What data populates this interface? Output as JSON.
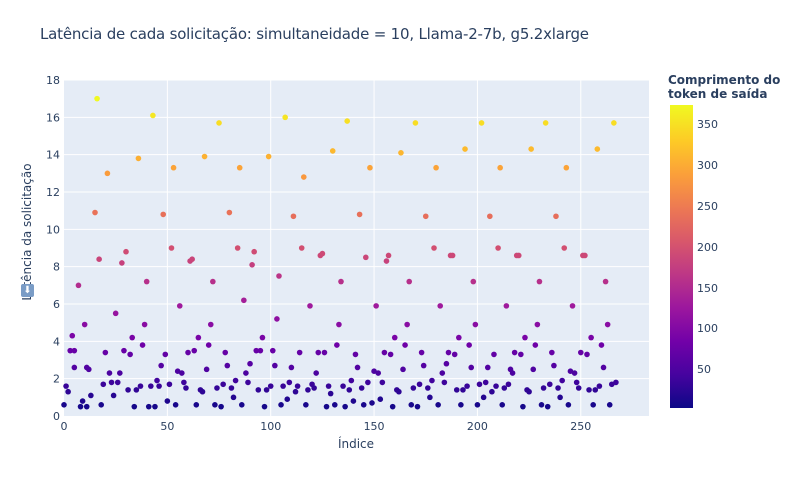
{
  "title": "Latência de cada solicitação: simultaneidade = 10, Llama-2-7b, g5.2xlarge",
  "colorbar": {
    "title_line1": "Comprimento do",
    "title_line2": "token de saída",
    "ticks": [
      "350",
      "300",
      "250",
      "200",
      "150",
      "100",
      "50"
    ],
    "tick_values": [
      350,
      300,
      250,
      200,
      150,
      100,
      50
    ],
    "range": [
      5,
      375
    ],
    "colorscale": [
      "#0d0887",
      "#46039f",
      "#7201a8",
      "#9c179e",
      "#bd3786",
      "#d8576b",
      "#ed7953",
      "#fb9f3a",
      "#fdca26",
      "#f0f921"
    ]
  },
  "axes": {
    "x_title": "Índice",
    "y_title": "Latência da solicitação",
    "y_icon": "download-arrow-icon",
    "x_ticks": [
      "0",
      "50",
      "100",
      "150",
      "200",
      "250"
    ],
    "y_ticks": [
      "0",
      "2",
      "4",
      "6",
      "8",
      "10",
      "12",
      "14",
      "16",
      "18"
    ]
  },
  "chart_data": {
    "type": "scatter",
    "title": "Latência de cada solicitação: simultaneidade = 10, Llama-2-7b, g5.2xlarge",
    "xlabel": "Índice",
    "ylabel": "Latência da solicitação",
    "xlim": [
      0,
      283
    ],
    "ylim": [
      0,
      18
    ],
    "grid": true,
    "color_label": "Comprimento do token de saída",
    "color_range": [
      5,
      375
    ],
    "points": [
      [
        0,
        0.6
      ],
      [
        1,
        1.6
      ],
      [
        2,
        1.3
      ],
      [
        3,
        3.5
      ],
      [
        4,
        4.3
      ],
      [
        5,
        2.6
      ],
      [
        5,
        3.5
      ],
      [
        7,
        7.0
      ],
      [
        8,
        0.5
      ],
      [
        9,
        0.8
      ],
      [
        10,
        4.9
      ],
      [
        11,
        2.6
      ],
      [
        11,
        0.5
      ],
      [
        12,
        2.5
      ],
      [
        13,
        1.1
      ],
      [
        15,
        10.9
      ],
      [
        16,
        17.0
      ],
      [
        17,
        8.4
      ],
      [
        18,
        0.6
      ],
      [
        19,
        1.7
      ],
      [
        20,
        3.4
      ],
      [
        21,
        13.0
      ],
      [
        22,
        2.3
      ],
      [
        23,
        1.8
      ],
      [
        24,
        1.1
      ],
      [
        25,
        5.5
      ],
      [
        26,
        1.8
      ],
      [
        27,
        2.3
      ],
      [
        28,
        8.2
      ],
      [
        29,
        3.5
      ],
      [
        30,
        8.8
      ],
      [
        31,
        1.4
      ],
      [
        32,
        3.3
      ],
      [
        33,
        4.2
      ],
      [
        34,
        0.5
      ],
      [
        35,
        1.4
      ],
      [
        36,
        13.8
      ],
      [
        37,
        1.6
      ],
      [
        38,
        3.8
      ],
      [
        39,
        4.9
      ],
      [
        40,
        7.2
      ],
      [
        41,
        0.5
      ],
      [
        42,
        1.6
      ],
      [
        43,
        16.1
      ],
      [
        44,
        0.5
      ],
      [
        45,
        1.9
      ],
      [
        46,
        1.6
      ],
      [
        47,
        2.7
      ],
      [
        48,
        10.8
      ],
      [
        49,
        3.3
      ],
      [
        50,
        0.8
      ],
      [
        51,
        1.7
      ],
      [
        52,
        9.0
      ],
      [
        53,
        13.3
      ],
      [
        54,
        0.6
      ],
      [
        55,
        2.4
      ],
      [
        56,
        5.9
      ],
      [
        57,
        2.3
      ],
      [
        58,
        1.8
      ],
      [
        59,
        1.5
      ],
      [
        60,
        3.4
      ],
      [
        61,
        8.3
      ],
      [
        62,
        8.4
      ],
      [
        63,
        3.5
      ],
      [
        64,
        0.6
      ],
      [
        65,
        4.2
      ],
      [
        66,
        1.4
      ],
      [
        67,
        1.3
      ],
      [
        68,
        13.9
      ],
      [
        69,
        2.5
      ],
      [
        70,
        3.8
      ],
      [
        71,
        4.9
      ],
      [
        72,
        7.2
      ],
      [
        73,
        0.6
      ],
      [
        74,
        1.5
      ],
      [
        75,
        15.7
      ],
      [
        76,
        0.5
      ],
      [
        77,
        1.7
      ],
      [
        78,
        3.4
      ],
      [
        79,
        2.7
      ],
      [
        80,
        10.9
      ],
      [
        81,
        1.5
      ],
      [
        82,
        1.0
      ],
      [
        83,
        1.9
      ],
      [
        84,
        9.0
      ],
      [
        85,
        13.3
      ],
      [
        86,
        0.6
      ],
      [
        87,
        6.2
      ],
      [
        88,
        2.3
      ],
      [
        89,
        1.8
      ],
      [
        90,
        2.8
      ],
      [
        91,
        8.1
      ],
      [
        92,
        8.8
      ],
      [
        93,
        3.5
      ],
      [
        94,
        1.4
      ],
      [
        95,
        3.5
      ],
      [
        96,
        4.2
      ],
      [
        97,
        0.5
      ],
      [
        98,
        1.4
      ],
      [
        99,
        13.9
      ],
      [
        100,
        1.6
      ],
      [
        101,
        3.5
      ],
      [
        102,
        2.7
      ],
      [
        103,
        5.2
      ],
      [
        104,
        7.5
      ],
      [
        105,
        0.6
      ],
      [
        106,
        1.6
      ],
      [
        107,
        16.0
      ],
      [
        108,
        0.9
      ],
      [
        109,
        1.8
      ],
      [
        110,
        2.6
      ],
      [
        111,
        10.7
      ],
      [
        112,
        1.3
      ],
      [
        113,
        1.6
      ],
      [
        114,
        3.4
      ],
      [
        115,
        9.0
      ],
      [
        116,
        12.8
      ],
      [
        117,
        0.6
      ],
      [
        118,
        1.4
      ],
      [
        119,
        5.9
      ],
      [
        120,
        1.7
      ],
      [
        121,
        1.5
      ],
      [
        122,
        2.3
      ],
      [
        123,
        3.4
      ],
      [
        124,
        8.6
      ],
      [
        125,
        8.7
      ],
      [
        126,
        3.4
      ],
      [
        127,
        0.5
      ],
      [
        128,
        1.6
      ],
      [
        129,
        1.2
      ],
      [
        130,
        14.2
      ],
      [
        131,
        0.6
      ],
      [
        132,
        3.8
      ],
      [
        133,
        4.9
      ],
      [
        134,
        7.2
      ],
      [
        135,
        1.6
      ],
      [
        136,
        0.5
      ],
      [
        137,
        15.8
      ],
      [
        138,
        1.4
      ],
      [
        139,
        1.9
      ],
      [
        140,
        0.8
      ],
      [
        141,
        3.3
      ],
      [
        142,
        2.6
      ],
      [
        143,
        10.8
      ],
      [
        144,
        1.5
      ],
      [
        145,
        0.6
      ],
      [
        146,
        8.5
      ],
      [
        147,
        1.8
      ],
      [
        148,
        13.3
      ],
      [
        149,
        0.7
      ],
      [
        150,
        2.4
      ],
      [
        151,
        5.9
      ],
      [
        152,
        2.3
      ],
      [
        153,
        0.9
      ],
      [
        154,
        1.8
      ],
      [
        155,
        3.4
      ],
      [
        156,
        8.3
      ],
      [
        157,
        8.6
      ],
      [
        158,
        3.3
      ],
      [
        159,
        0.5
      ],
      [
        160,
        4.2
      ],
      [
        161,
        1.4
      ],
      [
        162,
        1.3
      ],
      [
        163,
        14.1
      ],
      [
        164,
        2.5
      ],
      [
        165,
        3.8
      ],
      [
        166,
        4.9
      ],
      [
        167,
        7.2
      ],
      [
        168,
        0.6
      ],
      [
        169,
        1.5
      ],
      [
        170,
        15.7
      ],
      [
        171,
        0.5
      ],
      [
        172,
        1.7
      ],
      [
        173,
        3.4
      ],
      [
        174,
        2.7
      ],
      [
        175,
        10.7
      ],
      [
        176,
        1.5
      ],
      [
        177,
        1.0
      ],
      [
        178,
        1.9
      ],
      [
        179,
        9.0
      ],
      [
        180,
        13.3
      ],
      [
        181,
        0.6
      ],
      [
        182,
        5.9
      ],
      [
        183,
        2.3
      ],
      [
        184,
        1.8
      ],
      [
        185,
        2.8
      ],
      [
        186,
        3.4
      ],
      [
        187,
        8.6
      ],
      [
        188,
        8.6
      ],
      [
        189,
        3.3
      ],
      [
        190,
        1.4
      ],
      [
        191,
        4.2
      ],
      [
        192,
        0.6
      ],
      [
        193,
        1.4
      ],
      [
        194,
        14.3
      ],
      [
        195,
        1.6
      ],
      [
        196,
        3.8
      ],
      [
        197,
        2.6
      ],
      [
        198,
        7.2
      ],
      [
        199,
        4.9
      ],
      [
        200,
        0.6
      ],
      [
        201,
        1.7
      ],
      [
        202,
        15.7
      ],
      [
        203,
        1.0
      ],
      [
        204,
        1.8
      ],
      [
        205,
        2.6
      ],
      [
        206,
        10.7
      ],
      [
        207,
        1.3
      ],
      [
        208,
        3.3
      ],
      [
        209,
        1.6
      ],
      [
        210,
        9.0
      ],
      [
        211,
        13.3
      ],
      [
        212,
        0.6
      ],
      [
        213,
        1.5
      ],
      [
        214,
        5.9
      ],
      [
        215,
        1.7
      ],
      [
        216,
        2.5
      ],
      [
        217,
        2.3
      ],
      [
        218,
        3.4
      ],
      [
        219,
        8.6
      ],
      [
        220,
        8.6
      ],
      [
        221,
        3.3
      ],
      [
        222,
        0.5
      ],
      [
        223,
        4.2
      ],
      [
        224,
        1.4
      ],
      [
        225,
        1.3
      ],
      [
        226,
        14.3
      ],
      [
        227,
        2.5
      ],
      [
        228,
        3.8
      ],
      [
        229,
        4.9
      ],
      [
        230,
        7.2
      ],
      [
        231,
        0.6
      ],
      [
        232,
        1.5
      ],
      [
        233,
        15.7
      ],
      [
        234,
        0.5
      ],
      [
        235,
        1.7
      ],
      [
        236,
        3.4
      ],
      [
        237,
        2.7
      ],
      [
        238,
        10.7
      ],
      [
        239,
        1.5
      ],
      [
        240,
        1.0
      ],
      [
        241,
        1.9
      ],
      [
        242,
        9.0
      ],
      [
        243,
        13.3
      ],
      [
        244,
        0.6
      ],
      [
        245,
        2.4
      ],
      [
        246,
        5.9
      ],
      [
        247,
        2.3
      ],
      [
        248,
        1.8
      ],
      [
        249,
        1.5
      ],
      [
        250,
        3.4
      ],
      [
        251,
        8.6
      ],
      [
        252,
        8.6
      ],
      [
        253,
        3.3
      ],
      [
        254,
        1.4
      ],
      [
        255,
        4.2
      ],
      [
        256,
        0.6
      ],
      [
        257,
        1.4
      ],
      [
        258,
        14.3
      ],
      [
        259,
        1.6
      ],
      [
        260,
        3.8
      ],
      [
        261,
        2.6
      ],
      [
        262,
        7.2
      ],
      [
        263,
        4.9
      ],
      [
        264,
        0.6
      ],
      [
        265,
        1.7
      ],
      [
        266,
        15.7
      ],
      [
        267,
        1.8
      ]
    ]
  }
}
